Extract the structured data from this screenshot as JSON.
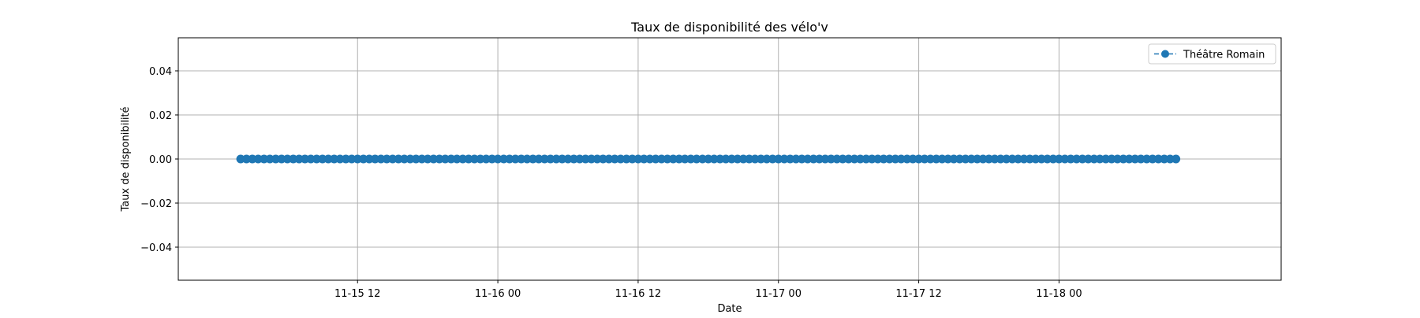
{
  "chart_data": {
    "type": "line",
    "title": "Taux de disponibilité des vélo'v",
    "xlabel": "Date",
    "ylabel": "Taux de disponibilité",
    "x_axis_type": "datetime",
    "xlim": [
      "2017-11-14T20:40:00",
      "2017-11-18T19:00:00"
    ],
    "ylim": [
      -0.055,
      0.055
    ],
    "x_ticks": [
      {
        "value": "2017-11-15T12:00:00",
        "label": "11-15 12"
      },
      {
        "value": "2017-11-16T00:00:00",
        "label": "11-16 00"
      },
      {
        "value": "2017-11-16T12:00:00",
        "label": "11-16 12"
      },
      {
        "value": "2017-11-17T00:00:00",
        "label": "11-17 00"
      },
      {
        "value": "2017-11-17T12:00:00",
        "label": "11-17 12"
      },
      {
        "value": "2017-11-18T00:00:00",
        "label": "11-18 00"
      }
    ],
    "y_ticks": [
      {
        "value": 0.04,
        "label": "0.04"
      },
      {
        "value": 0.02,
        "label": "0.02"
      },
      {
        "value": 0.0,
        "label": "0.00"
      },
      {
        "value": -0.02,
        "label": "−0.02"
      },
      {
        "value": -0.04,
        "label": "−0.04"
      }
    ],
    "grid": true,
    "legend_position": "top-right",
    "series": [
      {
        "name": "Théâtre Romain",
        "color": "#1f77b4",
        "marker": "circle",
        "line_style": "dashed",
        "sampling": "every 30 minutes",
        "x_start": "2017-11-15T02:00:00",
        "x_end": "2017-11-18T10:00:00",
        "constant_value": 0.0
      }
    ]
  }
}
